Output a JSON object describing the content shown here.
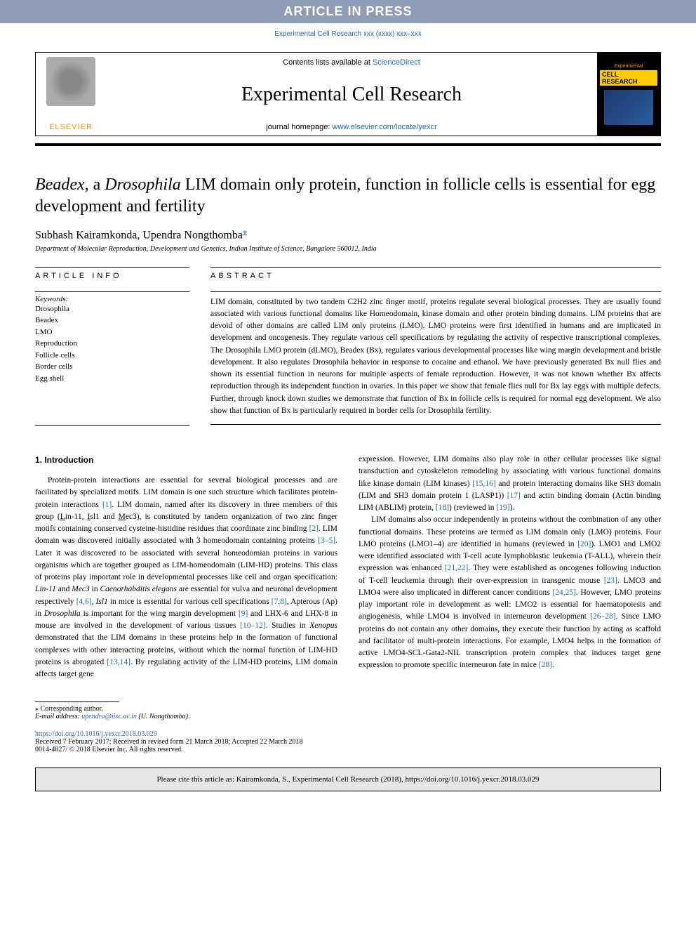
{
  "banner": {
    "article_in_press": "ARTICLE IN PRESS",
    "citation": "Experimental Cell Research xxx (xxxx) xxx–xxx"
  },
  "header": {
    "elsevier_label": "ELSEVIER",
    "contents_prefix": "Contents lists available at ",
    "contents_link": "ScienceDirect",
    "journal_name": "Experimental Cell Research",
    "homepage_prefix": "journal homepage: ",
    "homepage_link": "www.elsevier.com/locate/yexcr",
    "cover_line1": "Experimental",
    "cover_line2": "CELL RESEARCH"
  },
  "title": {
    "part1_italic": "Beadex",
    "part2": ", a ",
    "part3_italic": "Drosophila",
    "part4": " LIM domain only protein, function in follicle cells is essential for egg development and fertility"
  },
  "authors": {
    "a1": "Subhash Kairamkonda",
    "sep": ", ",
    "a2": "Upendra Nongthomba",
    "corresp_marker": "⁎"
  },
  "affiliation": "Department of Molecular Reproduction, Development and Genetics, Indian Institute of Science, Bangalore 560012, India",
  "sections": {
    "article_info": "ARTICLE INFO",
    "abstract": "ABSTRACT"
  },
  "keywords": {
    "label": "Keywords:",
    "items": [
      "Drosophila",
      "Beadex",
      "LMO",
      "Reproduction",
      "Follicle cells",
      "Border cells",
      "Egg shell"
    ]
  },
  "abstract": {
    "text": "LIM domain, constituted by two tandem C2H2 zinc finger motif, proteins regulate several biological processes. They are usually found associated with various functional domains like Homeodomain, kinase domain and other protein binding domains. LIM proteins that are devoid of other domains are called LIM only proteins (LMO). LMO proteins were first identified in humans and are implicated in development and oncogenesis. They regulate various cell specifications by regulating the activity of respective transcriptional complexes. The Drosophila LMO protein (dLMO), Beadex (Bx), regulates various developmental processes like wing margin development and bristle development. It also regulates Drosophila behavior in response to cocaine and ethanol. We have previously generated Bx null flies and shown its essential function in neurons for multiple aspects of female reproduction. However, it was not known whether Bx affects reproduction through its independent function in ovaries. In this paper we show that female flies null for Bx lay eggs with multiple defects. Further, through knock down studies we demonstrate that function of Bx in follicle cells is required for normal egg development. We also show that function of Bx is particularly required in border cells for Drosophila fertility."
  },
  "intro": {
    "heading": "1. Introduction",
    "p1": "Protein-protein interactions are essential for several biological processes and are facilitated by specialized motifs. LIM domain is one such structure which facilitates protein-protein interactions [1]. LIM domain, named after its discovery in three members of this group (Lin-11, Isl1 and Mec3), is constituted by tandem organization of two zinc finger motifs containing conserved cysteine-histidine residues that coordinate zinc binding [2]. LIM domain was discovered initially associated with 3 homeodomain containing proteins [3–5]. Later it was discovered to be associated with several homeodomian proteins in various organisms which are together grouped as LIM-homeodomain (LIM-HD) proteins. This class of proteins play important role in developmental processes like cell and organ specification: Lin-11 and Mec3 in Caenorhabditis elegans are essential for vulva and neuronal development respectively [4,6], Isl1 in mice is essential for various cell specifications [7,8], Apterous (Ap) in Drosophila is important for the wing margin development [9] and LHX-6 and LHX-8 in mouse are involved in the development of various tissues [10–12]. Studies in Xenopus demonstrated that the LIM domains in these proteins help in the formation of functional complexes with other interacting proteins, without which the normal function of LIM-HD proteins is abrogated [13,14]. By regulating activity of the LIM-HD proteins, LIM domain affects target gene",
    "p2": "expression. However, LIM domains also play role in other cellular processes like signal transduction and cytoskeleton remodeling by associating with various functional domains like kinase domain (LIM kinases) [15,16] and protein interacting domains like SH3 domain (LIM and SH3 domain protein 1 (LASP1)) [17] and actin binding domain (Actin binding LIM (ABLIM) protein, [18]) (reviewed in [19]).",
    "p3": "LIM domains also occur independently in proteins without the combination of any other functional domains. These proteins are termed as LIM domain only (LMO) proteins. Four LMO proteins (LMO1–4) are identified in humans (reviewed in [20]). LMO1 and LMO2 were identified associated with T-cell acute lymphoblastic leukemia (T-ALL), wherein their expression was enhanced [21,22]. They were established as oncogenes following induction of T-cell leuckemia through their over-expression in transgenic mouse [23]. LMO3 and LMO4 were also implicated in different cancer conditions [24,25]. However, LMO proteins play important role in development as well: LMO2 is essential for haematopoiesis and angiogenesis, while LMO4 is involved in interneuron development [26–28]. Since LMO proteins do not contain any other domains, they execute their function by acting as scaffold and facilitator of multi-protein interactions. For example, LMO4 helps in the formation of active LMO4-SCL-Gata2-NIL transcription protein complex that induces target gene expression to promote specific interneuron fate in mice [28]."
  },
  "footer": {
    "corresp": "⁎ Corresponding author.",
    "email_label": "E-mail address: ",
    "email": "upendra@iisc.ac.in",
    "email_name": " (U. Nongthomba).",
    "doi": "https://doi.org/10.1016/j.yexcr.2018.03.029",
    "received": "Received 7 February 2017; Received in revised form 21 March 2018; Accepted 22 March 2018",
    "copyright": "0014-4827/ © 2018 Elsevier Inc. All rights reserved."
  },
  "citebox": "Please cite this article as: Kairamkonda, S., Experimental Cell Research (2018), https://doi.org/10.1016/j.yexcr.2018.03.029",
  "colors": {
    "banner_bg": "#8e9db5",
    "link_color": "#2567b4",
    "elsevier_orange": "#ff8800",
    "citebox_bg": "#e6e6e6"
  }
}
